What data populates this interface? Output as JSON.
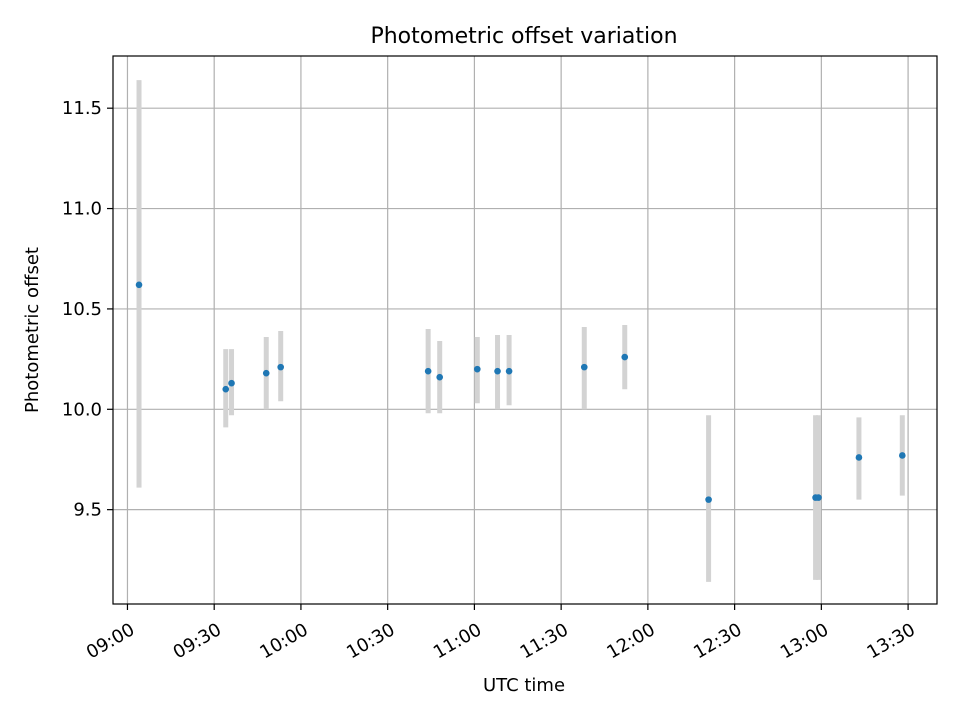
{
  "chart_data": {
    "type": "scatter",
    "title": "Photometric offset variation",
    "xlabel": "UTC time",
    "ylabel": "Photometric offset",
    "grid": true,
    "x_tick_labels": [
      "09:00",
      "09:30",
      "10:00",
      "10:30",
      "11:00",
      "11:30",
      "12:00",
      "12:30",
      "13:00",
      "13:30"
    ],
    "y_ticks": [
      9.5,
      10.0,
      10.5,
      11.0,
      11.5
    ],
    "y_tick_labels": [
      "9.5",
      "10.0",
      "10.5",
      "11.0",
      "11.5"
    ],
    "xlim": [
      "08:55",
      "13:40"
    ],
    "ylim": [
      9.03,
      11.76
    ],
    "series": [
      {
        "points": [
          {
            "x": "09:04",
            "y": 10.62,
            "err_low": 9.61,
            "err_high": 11.64
          },
          {
            "x": "09:34",
            "y": 10.1,
            "err_low": 9.91,
            "err_high": 10.3
          },
          {
            "x": "09:36",
            "y": 10.13,
            "err_low": 9.97,
            "err_high": 10.3
          },
          {
            "x": "09:48",
            "y": 10.18,
            "err_low": 10.0,
            "err_high": 10.36
          },
          {
            "x": "09:53",
            "y": 10.21,
            "err_low": 10.04,
            "err_high": 10.39
          },
          {
            "x": "10:44",
            "y": 10.19,
            "err_low": 9.98,
            "err_high": 10.4
          },
          {
            "x": "10:48",
            "y": 10.16,
            "err_low": 9.98,
            "err_high": 10.34
          },
          {
            "x": "11:01",
            "y": 10.2,
            "err_low": 10.03,
            "err_high": 10.36
          },
          {
            "x": "11:08",
            "y": 10.19,
            "err_low": 10.0,
            "err_high": 10.37
          },
          {
            "x": "11:12",
            "y": 10.19,
            "err_low": 10.02,
            "err_high": 10.37
          },
          {
            "x": "11:38",
            "y": 10.21,
            "err_low": 10.0,
            "err_high": 10.41
          },
          {
            "x": "11:52",
            "y": 10.26,
            "err_low": 10.1,
            "err_high": 10.42
          },
          {
            "x": "12:21",
            "y": 9.55,
            "err_low": 9.14,
            "err_high": 9.97
          },
          {
            "x": "12:58",
            "y": 9.56,
            "err_low": 9.15,
            "err_high": 9.97
          },
          {
            "x": "12:59",
            "y": 9.56,
            "err_low": 9.15,
            "err_high": 9.97
          },
          {
            "x": "13:13",
            "y": 9.76,
            "err_low": 9.55,
            "err_high": 9.96
          },
          {
            "x": "13:28",
            "y": 9.77,
            "err_low": 9.57,
            "err_high": 9.97
          }
        ]
      }
    ]
  },
  "colors": {
    "marker": "#1f77b4",
    "error_bar": "#d3d3d3",
    "grid": "#b0b0b0",
    "axes": "#000000"
  }
}
